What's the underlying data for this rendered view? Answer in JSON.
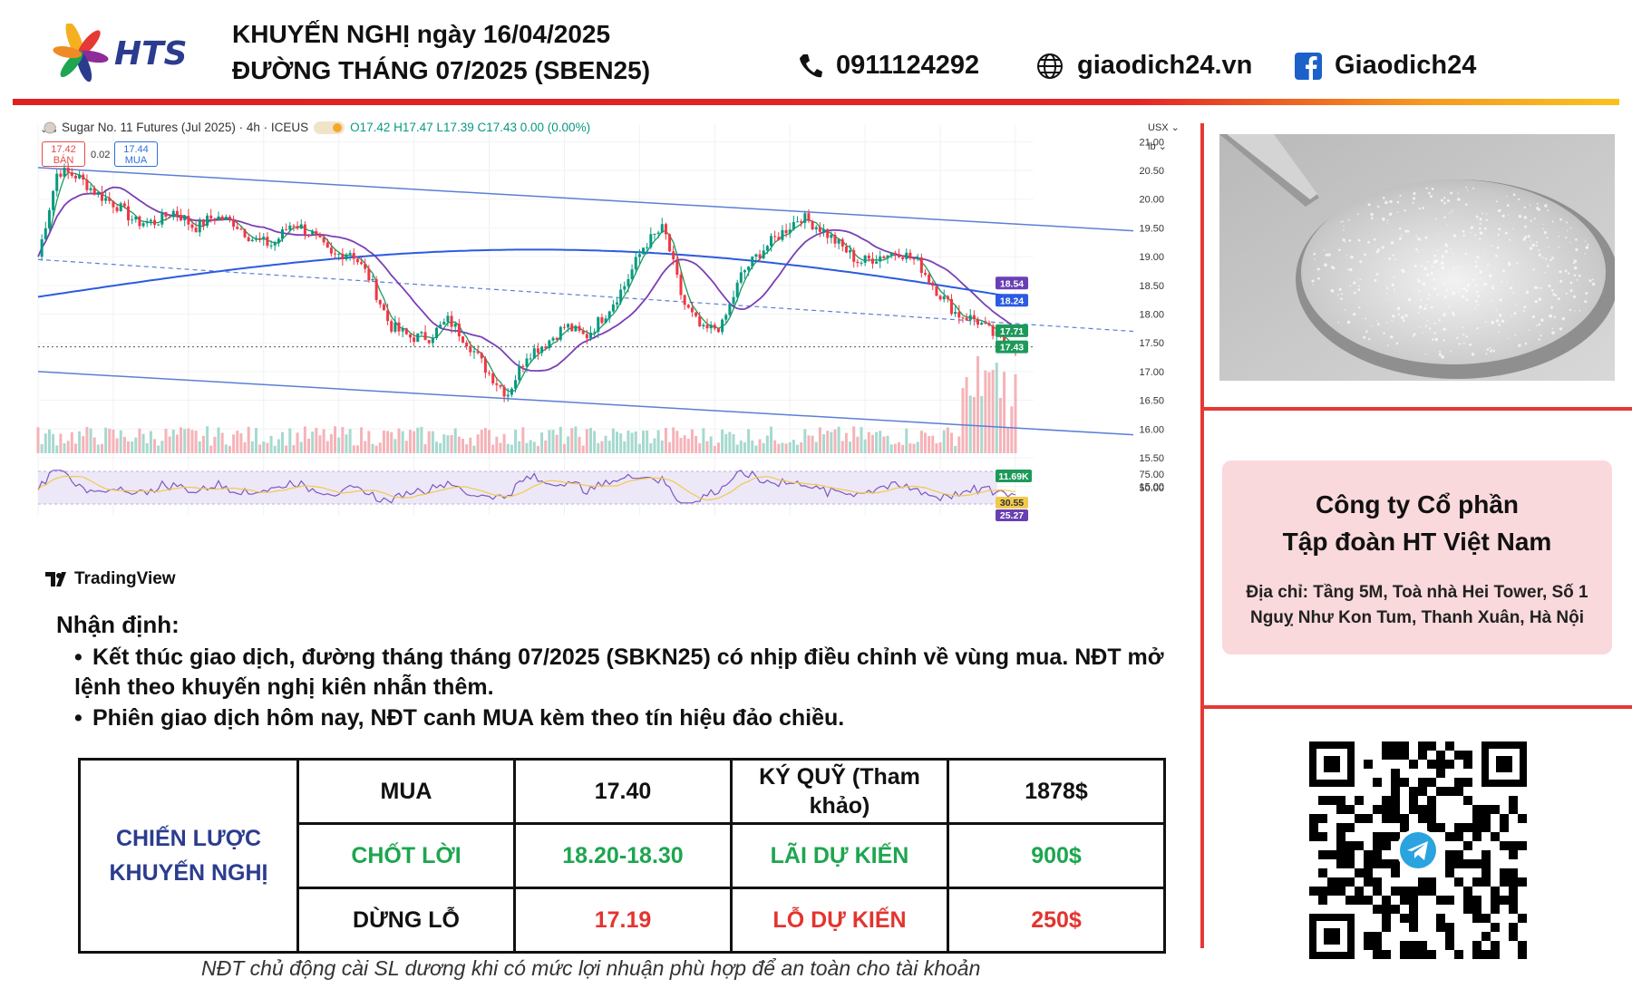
{
  "header": {
    "brand": "HTS",
    "title_line1": "KHUYẾN NGHỊ ngày 16/04/2025",
    "title_line2": "ĐƯỜNG THÁNG 07/2025 (SBEN25)",
    "phone": "0911124292",
    "website": "giaodich24.vn",
    "facebook": "Giaodich24",
    "icons": [
      "phone-icon",
      "globe-icon",
      "facebook-icon"
    ]
  },
  "chart": {
    "symbol_line": "Sugar No. 11 Futures (Jul 2025) · 4h · ICEUS",
    "ohlc": "O17.42 H17.47 L17.39 C17.43 0.00 (0.00%)",
    "sell_price": "17.42",
    "sell_label": "BÁN",
    "spread": "0.02",
    "buy_price": "17.44",
    "buy_label": "MUA",
    "currency": "USX",
    "unit": "lb",
    "collapse_count": "3",
    "watermark": "TradingView",
    "price_ticks": [
      "21.00",
      "20.50",
      "20.00",
      "19.50",
      "19.00",
      "18.50",
      "18.00",
      "17.50",
      "17.00",
      "16.50",
      "16.00",
      "15.50",
      "15.00"
    ],
    "price_tags": [
      {
        "value": "18.54",
        "color": "#6a3fb5"
      },
      {
        "value": "18.24",
        "color": "#2b5be0"
      },
      {
        "value": "17.71",
        "color": "#1d9a5a"
      },
      {
        "value": "17.43",
        "color": "#1d9a5a"
      }
    ],
    "volume_tag": "11.69K",
    "rsi_ticks": [
      "75.00",
      "50.00"
    ],
    "rsi_tags": [
      {
        "value": "30.55",
        "color": "#f2c94c"
      },
      {
        "value": "25.27",
        "color": "#6a3fb5"
      }
    ],
    "colors": {
      "up": "#089981",
      "down": "#f23645",
      "ma_fast": "#1d9a5a",
      "ma_mid": "#7b3fb5",
      "ma_slow": "#2b5be0",
      "channel": "#5b7fd6"
    }
  },
  "chart_data": {
    "type": "line",
    "title": "Sugar No. 11 Futures (Jul 2025) · 4h · ICEUS",
    "xlabel": "",
    "ylabel": "",
    "ylim": [
      14.9,
      21.1
    ],
    "x": [
      0,
      4,
      8,
      12,
      16,
      20,
      24,
      28,
      32,
      36,
      40,
      44,
      48,
      52,
      56,
      60,
      64,
      68,
      72,
      76,
      80,
      84,
      88,
      92,
      96,
      100,
      104,
      108,
      112,
      116,
      120,
      124,
      128,
      132,
      136,
      140,
      144,
      148,
      152,
      156,
      160,
      164,
      168,
      172,
      176,
      180,
      184,
      188,
      192,
      196,
      200
    ],
    "series": [
      {
        "name": "",
        "values": [
          19.0,
          20.5,
          20.4,
          20.1,
          19.9,
          19.6,
          19.6,
          19.8,
          19.5,
          19.7,
          19.6,
          19.3,
          19.2,
          19.6,
          19.4,
          19.0,
          19.1,
          18.6,
          17.8,
          17.6,
          17.6,
          17.9,
          17.5,
          17.0,
          16.6,
          17.3,
          17.5,
          17.8,
          17.6,
          18.0,
          18.5,
          19.2,
          19.5,
          18.2,
          17.7,
          17.8,
          18.7,
          19.1,
          19.4,
          19.7,
          19.5,
          19.2,
          18.9,
          19.0,
          19.1,
          18.9,
          18.4,
          18.0,
          17.9,
          17.6,
          17.43
        ]
      }
    ]
  },
  "analysis": {
    "heading": "Nhận định:",
    "bullet1": "Kết thúc giao dịch, đường tháng tháng 07/2025 (SBKN25) có nhịp điều chỉnh về vùng mua. NĐT mở lệnh theo khuyến nghị kiên nhẫn thêm.",
    "bullet2": "Phiên giao dịch hôm nay, NĐT canh MUA kèm theo tín hiệu đảo chiều."
  },
  "strategy": {
    "lead": "CHIẾN LƯỢC KHUYẾN NGHỊ",
    "action": "MUA",
    "entry": "17.40",
    "margin_label": "KÝ QUỸ (Tham khảo)",
    "margin_value": "1878$",
    "tp_label": "CHỐT LỜI",
    "tp_value": "18.20-18.30",
    "profit_label": "LÃI DỰ KIẾN",
    "profit_value": "900$",
    "sl_label": "DỪNG LỖ",
    "sl_value": "17.19",
    "loss_label": "LỖ DỰ KIẾN",
    "loss_value": "250$"
  },
  "footnote": "NĐT chủ động cài SL dương khi có mức lợi nhuận phù hợp để an toàn cho tài khoản",
  "company": {
    "name_line1": "Công ty Cổ phần",
    "name_line2": "Tập đoàn HT Việt Nam",
    "address_line1": "Địa chỉ: Tầng 5M, Toà nhà Hei Tower, Số 1",
    "address_line2": "Nguỵ Như Kon Tum, Thanh Xuân, Hà Nội"
  }
}
